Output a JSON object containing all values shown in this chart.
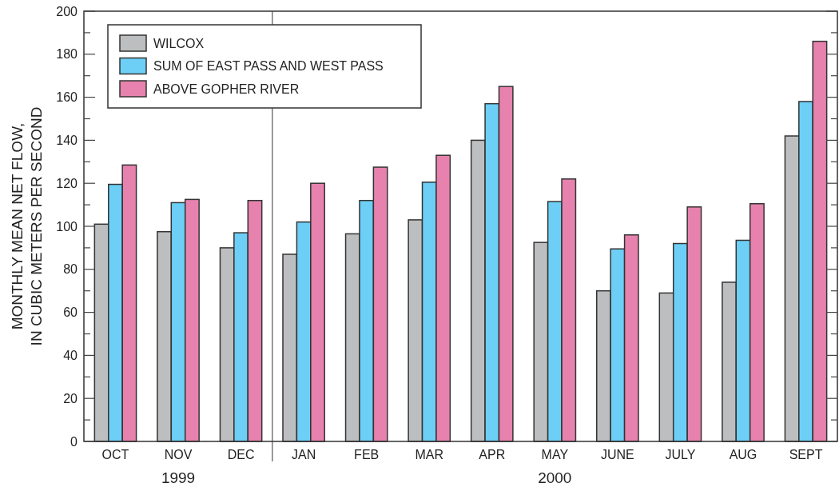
{
  "chart_data": {
    "type": "bar",
    "ylabel": "MONTHLY MEAN NET FLOW,\nIN CUBIC METERS PER SECOND",
    "categories": [
      "OCT",
      "NOV",
      "DEC",
      "JAN",
      "FEB",
      "MAR",
      "APR",
      "MAY",
      "JUNE",
      "JULY",
      "AUG",
      "SEPT"
    ],
    "series": [
      {
        "name": "WILCOX",
        "color": "#bcbec0",
        "values": [
          101,
          97.5,
          90,
          87,
          96.5,
          103,
          140,
          92.5,
          70,
          69,
          74,
          142
        ]
      },
      {
        "name": "SUM OF EAST PASS AND WEST PASS",
        "color": "#6dcff6",
        "values": [
          119.5,
          111,
          97,
          102,
          112,
          120.5,
          157,
          111.5,
          89.5,
          92,
          93.5,
          158
        ]
      },
      {
        "name": "ABOVE GOPHER RIVER",
        "color": "#e682ad",
        "values": [
          128.5,
          112.5,
          112,
          120,
          127.5,
          133,
          165,
          122,
          96,
          109,
          110.5,
          186
        ]
      }
    ],
    "ylim": [
      0,
      200
    ],
    "yticks": [
      0,
      {
        "value": 10,
        "label": null
      },
      20,
      {
        "value": 30,
        "label": null
      },
      40,
      {
        "value": 50,
        "label": null
      },
      60,
      {
        "value": 70,
        "label": null
      },
      80,
      {
        "value": 90,
        "label": null
      },
      100,
      {
        "value": 110,
        "label": null
      },
      120,
      {
        "value": 130,
        "label": null
      },
      140,
      {
        "value": 150,
        "label": null
      },
      160,
      {
        "value": 170,
        "label": null
      },
      180,
      {
        "value": 190,
        "label": null
      },
      200
    ],
    "annotations": [
      "1999",
      "2000"
    ],
    "legend": "top left"
  }
}
